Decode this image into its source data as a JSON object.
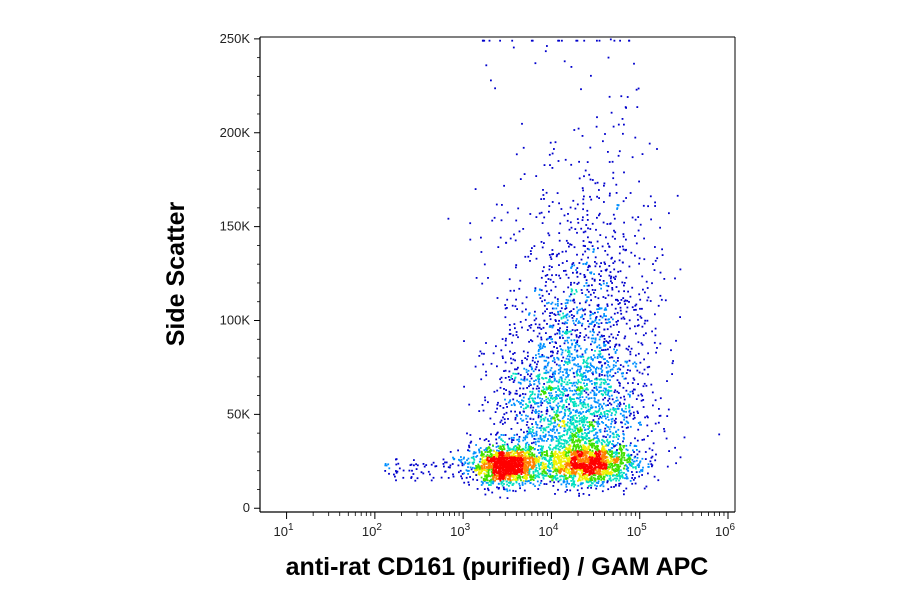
{
  "chart_data": {
    "type": "scatter",
    "subtype": "flow-cytometry density dot plot",
    "xlabel": "anti-rat CD161 (purified) / GAM APC",
    "ylabel": "Side Scatter",
    "x_scale": "log",
    "xlim": [
      5,
      1200000
    ],
    "ylim": [
      -2000,
      251000
    ],
    "x_ticks": [
      {
        "value": 10,
        "base": "10",
        "exp": "1"
      },
      {
        "value": 100,
        "base": "10",
        "exp": "2"
      },
      {
        "value": 1000,
        "base": "10",
        "exp": "3"
      },
      {
        "value": 10000,
        "base": "10",
        "exp": "4"
      },
      {
        "value": 100000,
        "base": "10",
        "exp": "5"
      },
      {
        "value": 1000000,
        "base": "10",
        "exp": "6"
      }
    ],
    "y_ticks": [
      {
        "value": 0,
        "label": "0"
      },
      {
        "value": 50000,
        "label": "50K"
      },
      {
        "value": 100000,
        "label": "100K"
      },
      {
        "value": 150000,
        "label": "150K"
      },
      {
        "value": 200000,
        "label": "200K"
      },
      {
        "value": 250000,
        "label": "250K"
      }
    ],
    "color_scale": [
      "#0000cc",
      "#0090ff",
      "#00e0c0",
      "#40e000",
      "#f0f000",
      "#ff8000",
      "#ff0000"
    ],
    "populations": [
      {
        "x_center": 3000,
        "y_center": 23000,
        "points": 1400
      },
      {
        "x_center": 25000,
        "y_center": 24000,
        "points": 1500
      },
      {
        "x_center": 15000,
        "y_center": 60000,
        "points": 2200
      },
      {
        "x_center": 40000,
        "y_center": 110000,
        "points": 500
      }
    ],
    "grid": false,
    "legend": "none"
  }
}
